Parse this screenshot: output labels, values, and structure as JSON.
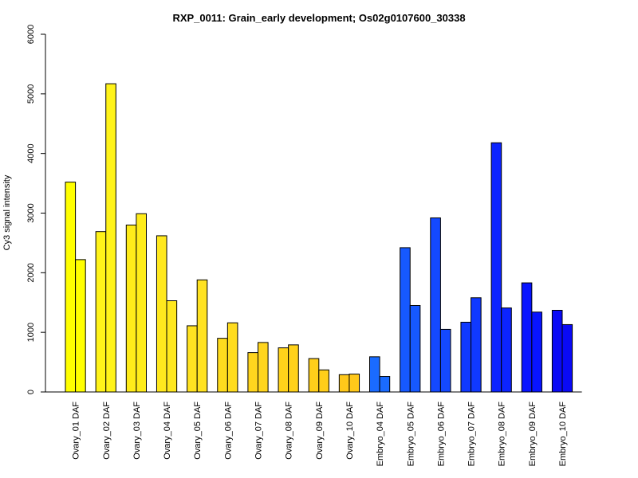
{
  "chart_data": {
    "type": "bar",
    "title": "RXP_0011: Grain_early development; Os02g0107600_30338",
    "xlabel": "",
    "ylabel": "Cy3 signal intensity",
    "ylim": [
      0,
      6000
    ],
    "yticks": [
      0,
      1000,
      2000,
      3000,
      4000,
      5000,
      6000
    ],
    "grid": false,
    "legend": "none",
    "categories": [
      "Ovary_01 DAF",
      "Ovary_02 DAF",
      "Ovary_03 DAF",
      "Ovary_04 DAF",
      "Ovary_05 DAF",
      "Ovary_06 DAF",
      "Ovary_07 DAF",
      "Ovary_08 DAF",
      "Ovary_09 DAF",
      "Ovary_10 DAF",
      "Embryo_04 DAF",
      "Embryo_05 DAF",
      "Embryo_06 DAF",
      "Embryo_07 DAF",
      "Embryo_08 DAF",
      "Embryo_09 DAF",
      "Embryo_10 DAF"
    ],
    "series": [
      {
        "values": [
          3520,
          2690,
          2800,
          2620,
          1110,
          900,
          660,
          740,
          560,
          290,
          590,
          2420,
          2920,
          1170,
          4180,
          1830,
          1370
        ]
      },
      {
        "values": [
          2220,
          5170,
          2990,
          1530,
          1880,
          1160,
          830,
          790,
          370,
          300,
          260,
          1450,
          1050,
          1580,
          1410,
          1340,
          1130
        ]
      }
    ],
    "colors": [
      "#FFFF00",
      "#FFF31A",
      "#FFEC1A",
      "#FFE81E",
      "#FFE221",
      "#FFDC1E",
      "#FFD51E",
      "#FFD21A",
      "#FFCE1A",
      "#FFC81A",
      "#1A6BFF",
      "#1659FF",
      "#1449FF",
      "#1039FF",
      "#0C24FF",
      "#0814FF",
      "#0A0AF5"
    ]
  }
}
